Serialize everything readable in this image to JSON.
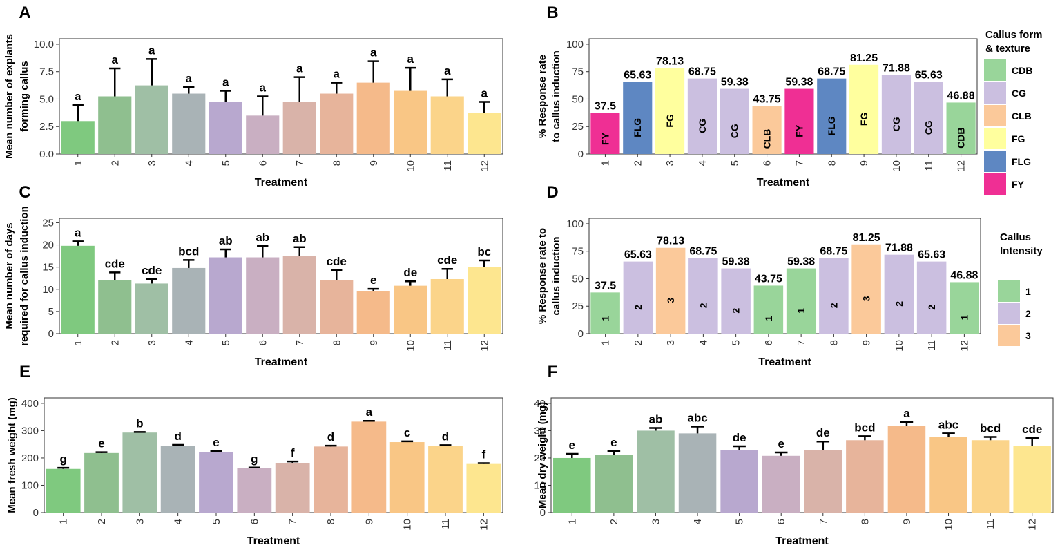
{
  "chart_data": [
    {
      "id": "A",
      "panel": "A",
      "type": "bar",
      "xlabel": "Treatment",
      "ylabel_lines": [
        "Mean number of explants",
        "forming callus"
      ],
      "ylim": [
        0,
        10.5
      ],
      "yticks": [
        0.0,
        2.5,
        5.0,
        7.5,
        10.0
      ],
      "ytick_labels": [
        "0.0",
        "2.5",
        "5.0",
        "7.5",
        "10.0"
      ],
      "categories": [
        "1",
        "2",
        "3",
        "4",
        "5",
        "6",
        "7",
        "8",
        "9",
        "10",
        "11",
        "12"
      ],
      "values": [
        3.0,
        5.25,
        6.25,
        5.5,
        4.75,
        3.5,
        4.75,
        5.5,
        6.5,
        5.75,
        5.25,
        3.75
      ],
      "errors": [
        1.45,
        2.55,
        2.4,
        0.6,
        1.0,
        1.75,
        2.25,
        1.0,
        1.95,
        2.1,
        1.55,
        1.0
      ],
      "bar_labels": [
        "a",
        "a",
        "a",
        "a",
        "a",
        "a",
        "a",
        "a",
        "a",
        "a",
        "a",
        "a"
      ],
      "bar_colors": [
        "#7fc97f",
        "#8fbf8f",
        "#9fbfa5",
        "#a9b3b6",
        "#b8a8cf",
        "#c9afc2",
        "#d9b3a9",
        "#e7b49b",
        "#f5ba8a",
        "#f9c685",
        "#fbd48a",
        "#fde68f"
      ]
    },
    {
      "id": "B",
      "panel": "B",
      "type": "bar",
      "xlabel": "Treatment",
      "ylabel_lines": [
        "% Response rate",
        "to callus induction"
      ],
      "ylim": [
        0,
        105
      ],
      "yticks": [
        0,
        25,
        50,
        75,
        100
      ],
      "ytick_labels": [
        "0",
        "25",
        "50",
        "75",
        "100"
      ],
      "categories": [
        "1",
        "2",
        "3",
        "4",
        "5",
        "6",
        "7",
        "8",
        "9",
        "10",
        "11",
        "12"
      ],
      "values": [
        37.5,
        65.63,
        78.13,
        68.75,
        59.38,
        43.75,
        59.38,
        68.75,
        81.25,
        71.88,
        65.63,
        46.88
      ],
      "value_labels": [
        "37.5",
        "65.63",
        "78.13",
        "68.75",
        "59.38",
        "43.75",
        "59.38",
        "68.75",
        "81.25",
        "71.88",
        "65.63",
        "46.88"
      ],
      "bar_groups": [
        "FY",
        "FLG",
        "FG",
        "CG",
        "CG",
        "CLB",
        "FY",
        "FLG",
        "FG",
        "CG",
        "CG",
        "CDB"
      ],
      "legend": {
        "title_lines": [
          "Callus form",
          "& texture"
        ],
        "items": [
          {
            "key": "CDB",
            "color": "#99d59a"
          },
          {
            "key": "CG",
            "color": "#cbbfe0"
          },
          {
            "key": "CLB",
            "color": "#fbc99a"
          },
          {
            "key": "FG",
            "color": "#ffff9e"
          },
          {
            "key": "FLG",
            "color": "#5e87c2"
          },
          {
            "key": "FY",
            "color": "#ef2f94"
          }
        ]
      }
    },
    {
      "id": "C",
      "panel": "C",
      "type": "bar",
      "xlabel": "Treatment",
      "ylabel_lines": [
        "Mean number of days",
        "required for callus induction"
      ],
      "ylim": [
        0,
        26
      ],
      "yticks": [
        0,
        5,
        10,
        15,
        20,
        25
      ],
      "ytick_labels": [
        "0",
        "5",
        "10",
        "15",
        "20",
        "25"
      ],
      "categories": [
        "1",
        "2",
        "3",
        "4",
        "5",
        "6",
        "7",
        "8",
        "9",
        "10",
        "11",
        "12"
      ],
      "values": [
        19.8,
        12.0,
        11.3,
        14.8,
        17.2,
        17.2,
        17.5,
        12.0,
        9.5,
        10.8,
        12.3,
        15.0
      ],
      "errors": [
        1.0,
        1.8,
        1.0,
        1.8,
        1.8,
        2.6,
        2.0,
        2.3,
        0.6,
        1.0,
        2.3,
        1.5
      ],
      "bar_labels": [
        "a",
        "cde",
        "cde",
        "bcd",
        "ab",
        "ab",
        "ab",
        "cde",
        "e",
        "de",
        "cde",
        "bc"
      ],
      "bar_colors": [
        "#7fc97f",
        "#8fbf8f",
        "#9fbfa5",
        "#a9b3b6",
        "#b8a8cf",
        "#c9afc2",
        "#d9b3a9",
        "#e7b49b",
        "#f5ba8a",
        "#f9c685",
        "#fbd48a",
        "#fde68f"
      ]
    },
    {
      "id": "D",
      "panel": "D",
      "type": "bar",
      "xlabel": "Treatment",
      "ylabel_lines": [
        "% Response rate to",
        "callus induction"
      ],
      "ylim": [
        0,
        105
      ],
      "yticks": [
        0,
        25,
        50,
        75,
        100
      ],
      "ytick_labels": [
        "0",
        "25",
        "50",
        "75",
        "100"
      ],
      "categories": [
        "1",
        "2",
        "3",
        "4",
        "5",
        "6",
        "7",
        "8",
        "9",
        "10",
        "11",
        "12"
      ],
      "values": [
        37.5,
        65.63,
        78.13,
        68.75,
        59.38,
        43.75,
        59.38,
        68.75,
        81.25,
        71.88,
        65.63,
        46.88
      ],
      "value_labels": [
        "37.5",
        "65.63",
        "78.13",
        "68.75",
        "59.38",
        "43.75",
        "59.38",
        "68.75",
        "81.25",
        "71.88",
        "65.63",
        "46.88"
      ],
      "bar_groups": [
        "1",
        "2",
        "3",
        "2",
        "2",
        "1",
        "1",
        "2",
        "3",
        "2",
        "2",
        "1"
      ],
      "legend": {
        "title_lines": [
          "Callus",
          "Intensity"
        ],
        "items": [
          {
            "key": "1",
            "color": "#99d59a"
          },
          {
            "key": "2",
            "color": "#cbbfe0"
          },
          {
            "key": "3",
            "color": "#fbc99a"
          }
        ]
      }
    },
    {
      "id": "E",
      "panel": "E",
      "type": "bar",
      "xlabel": "Treatment",
      "ylabel_lines": [
        "Mean fresh weight (mg)"
      ],
      "ylim": [
        0,
        420
      ],
      "yticks": [
        0,
        100,
        200,
        300,
        400
      ],
      "ytick_labels": [
        "0",
        "100",
        "200",
        "300",
        "400"
      ],
      "categories": [
        "1",
        "2",
        "3",
        "4",
        "5",
        "6",
        "7",
        "8",
        "9",
        "10",
        "11",
        "12"
      ],
      "values": [
        160,
        218,
        293,
        245,
        222,
        163,
        182,
        242,
        333,
        258,
        245,
        178
      ],
      "errors": [
        4,
        3,
        2,
        3,
        3,
        2,
        5,
        3,
        3,
        3,
        2,
        3
      ],
      "bar_labels": [
        "g",
        "e",
        "b",
        "d",
        "e",
        "g",
        "f",
        "d",
        "a",
        "c",
        "d",
        "f"
      ],
      "bar_colors": [
        "#7fc97f",
        "#8fbf8f",
        "#9fbfa5",
        "#a9b3b6",
        "#b8a8cf",
        "#c9afc2",
        "#d9b3a9",
        "#e7b49b",
        "#f5ba8a",
        "#f9c685",
        "#fbd48a",
        "#fde68f"
      ]
    },
    {
      "id": "F",
      "panel": "F",
      "type": "bar",
      "xlabel": "Treatment",
      "ylabel_lines": [
        "Mean dry weight (mg)"
      ],
      "ylim": [
        0,
        42
      ],
      "yticks": [
        0,
        10,
        20,
        30,
        40
      ],
      "ytick_labels": [
        "0",
        "10",
        "20",
        "30",
        "40"
      ],
      "categories": [
        "1",
        "2",
        "3",
        "4",
        "5",
        "6",
        "7",
        "8",
        "9",
        "10",
        "11",
        "12"
      ],
      "values": [
        20.0,
        21.0,
        30.0,
        29.0,
        23.0,
        20.8,
        22.8,
        26.5,
        31.7,
        27.7,
        26.5,
        24.5
      ],
      "errors": [
        1.5,
        1.5,
        1.0,
        2.5,
        1.3,
        1.2,
        3.2,
        1.5,
        1.5,
        1.3,
        1.2,
        2.8
      ],
      "bar_labels": [
        "e",
        "e",
        "ab",
        "abc",
        "de",
        "e",
        "de",
        "bcd",
        "a",
        "abc",
        "bcd",
        "cde"
      ],
      "bar_colors": [
        "#7fc97f",
        "#8fbf8f",
        "#9fbfa5",
        "#a9b3b6",
        "#b8a8cf",
        "#c9afc2",
        "#d9b3a9",
        "#e7b49b",
        "#f5ba8a",
        "#f9c685",
        "#fbd48a",
        "#fde68f"
      ]
    }
  ]
}
